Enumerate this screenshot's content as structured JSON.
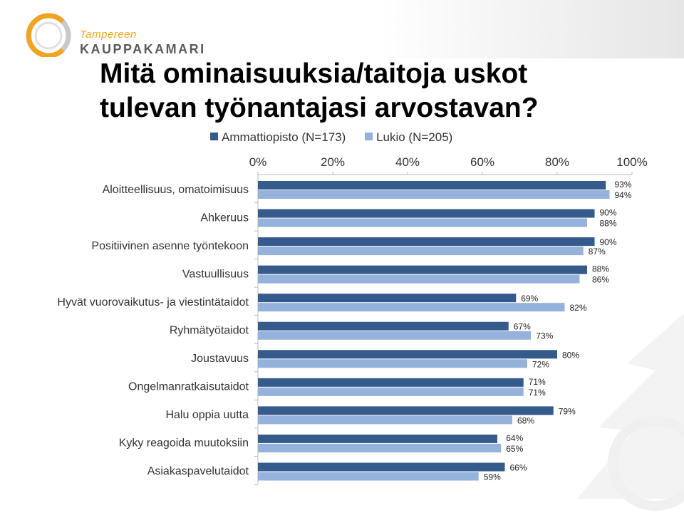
{
  "logo": {
    "line1": "Tampereen",
    "line2": "KAUPPAKAMARI"
  },
  "title": {
    "line1": "Mitä ominaisuuksia/taitoja uskot",
    "line2": "tulevan työnantajasi arvostavan?"
  },
  "colors": {
    "series1": "#355a8c",
    "series2": "#94b2db",
    "logo_orange": "#f0a422",
    "logo_gray": "#5a5a5a"
  },
  "chart_data": {
    "type": "bar",
    "orientation": "horizontal",
    "title": "",
    "xlabel": "",
    "ylabel": "",
    "xlim": [
      0,
      100
    ],
    "x_ticks": [
      "0%",
      "20%",
      "40%",
      "60%",
      "80%",
      "100%"
    ],
    "legend_position": "top",
    "categories": [
      "Aloitteellisuus, omatoimisuus",
      "Ahkeruus",
      "Positiivinen asenne työntekoon",
      "Vastuullisuus",
      "Hyvät vuorovaikutus- ja viestintätaidot",
      "Ryhmätyötaidot",
      "Joustavuus",
      "Ongelmanratkaisutaidot",
      "Halu oppia uutta",
      "Kyky reagoida muutoksiin",
      "Asiakaspavelutaidot"
    ],
    "series": [
      {
        "name": "Ammattiopisto (N=173)",
        "values": [
          93,
          90,
          90,
          88,
          69,
          67,
          80,
          71,
          79,
          64,
          66
        ],
        "labels": [
          "93%",
          "90%",
          "90%",
          "88%",
          "69%",
          "67%",
          "80%",
          "71%",
          "79%",
          "64%",
          "66%"
        ]
      },
      {
        "name": "Lukio (N=205)",
        "values": [
          94,
          88,
          87,
          86,
          82,
          73,
          72,
          71,
          68,
          65,
          59
        ],
        "labels": [
          "94%",
          "88%",
          "87%",
          "86%",
          "82%",
          "73%",
          "72%",
          "71%",
          "68%",
          "65%",
          "59%"
        ]
      }
    ]
  }
}
